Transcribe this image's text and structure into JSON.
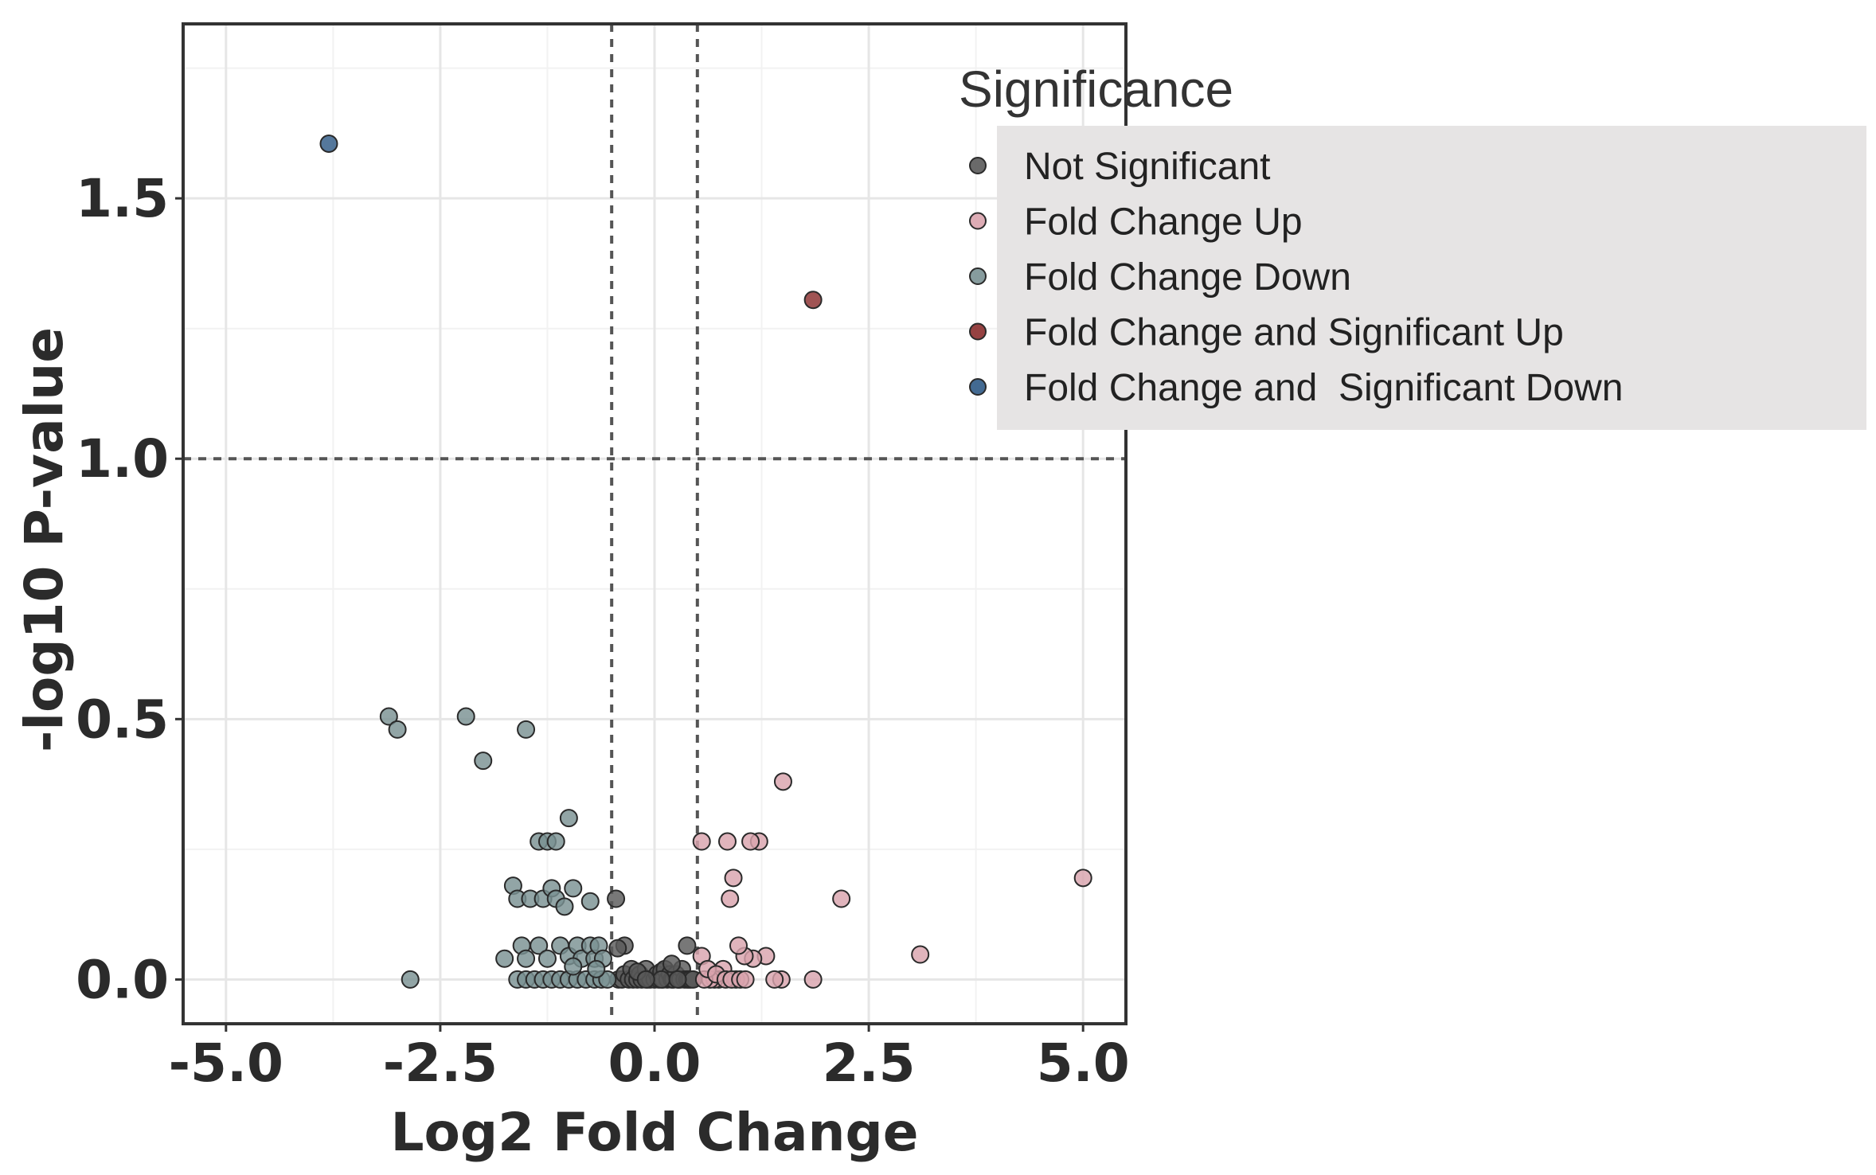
{
  "chart_data": {
    "type": "scatter",
    "title": "",
    "xlabel": "Log2 Fold Change",
    "ylabel": "-log10 P-value",
    "xlim": [
      -5.5,
      5.5
    ],
    "ylim": [
      -0.085,
      1.835
    ],
    "xticks": [
      -5.0,
      -2.5,
      0.0,
      2.5,
      5.0
    ],
    "xtick_labels": [
      "-5.0",
      "-2.5",
      "0.0",
      "2.5",
      "5.0"
    ],
    "yticks": [
      0.0,
      0.5,
      1.0,
      1.5
    ],
    "ytick_labels": [
      "0.0",
      "0.5",
      "1.0",
      "1.5"
    ],
    "grid": true,
    "threshold_lines": {
      "x": [
        -0.5,
        0.5
      ],
      "y": [
        1.0
      ]
    },
    "legend": {
      "title": "Significance",
      "placement": "right",
      "entries": [
        {
          "label": "Not Significant",
          "color": "#5a5a5a"
        },
        {
          "label": "Fold Change Up",
          "color": "#d9a3ad"
        },
        {
          "label": "Fold Change Down",
          "color": "#7a9193"
        },
        {
          "label": "Fold Change and Significant Up",
          "color": "#8b2e2e"
        },
        {
          "label": "Fold Change and  Significant Down",
          "color": "#2f5a86"
        }
      ]
    },
    "series": [
      {
        "name": "Not Significant",
        "color": "#5a5a5a",
        "points": [
          [
            -0.45,
            0.155
          ],
          [
            -0.42,
            0.0
          ],
          [
            -0.38,
            0.0
          ],
          [
            -0.35,
            0.01
          ],
          [
            -0.3,
            0.0
          ],
          [
            -0.27,
            0.02
          ],
          [
            -0.25,
            0.0
          ],
          [
            -0.2,
            0.0
          ],
          [
            -0.17,
            0.01
          ],
          [
            -0.15,
            0.0
          ],
          [
            -0.1,
            0.02
          ],
          [
            -0.08,
            0.0
          ],
          [
            -0.05,
            0.0
          ],
          [
            0.0,
            0.0
          ],
          [
            0.03,
            0.01
          ],
          [
            0.05,
            0.0
          ],
          [
            0.08,
            0.015
          ],
          [
            0.1,
            0.0
          ],
          [
            0.12,
            0.02
          ],
          [
            0.15,
            0.0
          ],
          [
            0.18,
            0.01
          ],
          [
            0.2,
            0.0
          ],
          [
            0.22,
            0.0
          ],
          [
            0.25,
            0.01
          ],
          [
            0.28,
            0.0
          ],
          [
            0.3,
            0.0
          ],
          [
            0.32,
            0.02
          ],
          [
            0.35,
            0.0
          ],
          [
            0.38,
            0.0
          ],
          [
            0.4,
            0.0
          ],
          [
            0.42,
            0.0
          ],
          [
            0.45,
            0.0
          ],
          [
            0.2,
            0.03
          ],
          [
            0.38,
            0.065
          ],
          [
            -0.2,
            0.015
          ],
          [
            -0.35,
            0.065
          ],
          [
            -0.43,
            0.06
          ],
          [
            0.08,
            0.0
          ],
          [
            -0.1,
            0.0
          ],
          [
            0.27,
            0.0
          ]
        ]
      },
      {
        "name": "Fold Change Up",
        "color": "#d9a3ad",
        "points": [
          [
            5.0,
            0.195
          ],
          [
            3.1,
            0.048
          ],
          [
            2.18,
            0.155
          ],
          [
            1.85,
            0.0
          ],
          [
            1.5,
            0.38
          ],
          [
            1.48,
            0.0
          ],
          [
            1.4,
            0.0
          ],
          [
            1.3,
            0.045
          ],
          [
            1.22,
            0.265
          ],
          [
            1.15,
            0.04
          ],
          [
            1.12,
            0.265
          ],
          [
            1.05,
            0.045
          ],
          [
            0.98,
            0.065
          ],
          [
            0.95,
            0.0
          ],
          [
            0.92,
            0.195
          ],
          [
            0.88,
            0.155
          ],
          [
            0.85,
            0.265
          ],
          [
            0.8,
            0.02
          ],
          [
            0.75,
            0.0
          ],
          [
            0.7,
            0.0
          ],
          [
            0.65,
            0.0
          ],
          [
            0.58,
            0.0
          ],
          [
            0.55,
            0.265
          ],
          [
            0.55,
            0.045
          ],
          [
            0.62,
            0.02
          ],
          [
            0.72,
            0.01
          ],
          [
            0.83,
            0.0
          ],
          [
            0.9,
            0.0
          ],
          [
            1.0,
            0.0
          ],
          [
            1.06,
            0.0
          ]
        ]
      },
      {
        "name": "Fold Change Down",
        "color": "#7a9193",
        "points": [
          [
            -3.1,
            0.505
          ],
          [
            -3.0,
            0.48
          ],
          [
            -2.2,
            0.505
          ],
          [
            -2.0,
            0.42
          ],
          [
            -1.5,
            0.48
          ],
          [
            -2.85,
            0.0
          ],
          [
            -1.35,
            0.265
          ],
          [
            -1.25,
            0.265
          ],
          [
            -1.15,
            0.265
          ],
          [
            -1.0,
            0.31
          ],
          [
            -1.65,
            0.18
          ],
          [
            -1.6,
            0.155
          ],
          [
            -1.45,
            0.155
          ],
          [
            -1.3,
            0.155
          ],
          [
            -1.2,
            0.175
          ],
          [
            -1.15,
            0.155
          ],
          [
            -1.05,
            0.14
          ],
          [
            -0.95,
            0.175
          ],
          [
            -0.75,
            0.15
          ],
          [
            -1.75,
            0.04
          ],
          [
            -1.55,
            0.065
          ],
          [
            -1.5,
            0.04
          ],
          [
            -1.35,
            0.065
          ],
          [
            -1.25,
            0.04
          ],
          [
            -1.1,
            0.065
          ],
          [
            -1.0,
            0.045
          ],
          [
            -0.9,
            0.065
          ],
          [
            -0.85,
            0.04
          ],
          [
            -0.75,
            0.065
          ],
          [
            -0.7,
            0.04
          ],
          [
            -0.65,
            0.065
          ],
          [
            -0.6,
            0.04
          ],
          [
            -1.6,
            0.0
          ],
          [
            -1.5,
            0.0
          ],
          [
            -1.4,
            0.0
          ],
          [
            -1.3,
            0.0
          ],
          [
            -1.2,
            0.0
          ],
          [
            -1.1,
            0.0
          ],
          [
            -1.0,
            0.0
          ],
          [
            -0.9,
            0.0
          ],
          [
            -0.8,
            0.0
          ],
          [
            -0.7,
            0.0
          ],
          [
            -0.62,
            0.0
          ],
          [
            -0.55,
            0.0
          ],
          [
            -0.95,
            0.025
          ],
          [
            -0.68,
            0.02
          ]
        ]
      },
      {
        "name": "Fold Change and Significant Up",
        "color": "#8b2e2e",
        "points": [
          [
            1.85,
            1.305
          ]
        ]
      },
      {
        "name": "Fold Change and  Significant Down",
        "color": "#2f5a86",
        "points": [
          [
            -3.8,
            1.605
          ]
        ]
      }
    ]
  }
}
